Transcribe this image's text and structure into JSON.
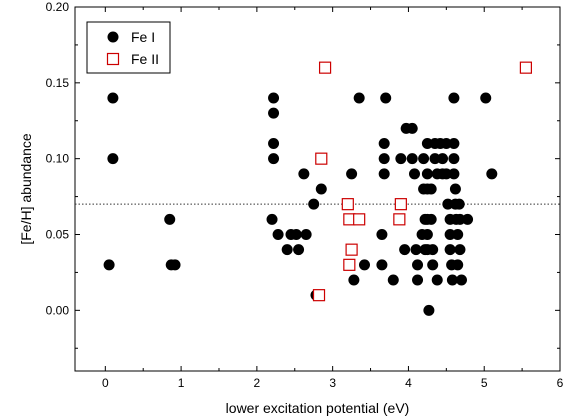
{
  "chart_data": {
    "type": "scatter",
    "xlabel": "lower excitation potential (eV)",
    "ylabel": "[Fe/H] abundance",
    "xlim": [
      -0.4,
      6.0
    ],
    "ylim": [
      -0.04,
      0.2
    ],
    "xticks": [
      0,
      1,
      2,
      3,
      4,
      5,
      6
    ],
    "xtick_labels": [
      "0",
      "1",
      "2",
      "3",
      "4",
      "5",
      "6"
    ],
    "yticks": [
      0.0,
      0.05,
      0.1,
      0.15,
      0.2
    ],
    "ytick_labels": [
      "0.00",
      "0.05",
      "0.10",
      "0.15",
      "0.20"
    ],
    "reference_line": {
      "y": 0.07,
      "style": "dotted"
    },
    "grid": false,
    "legend_position": "top-left",
    "series": [
      {
        "name": "Fe I",
        "marker": "filled-circle",
        "color": "#000000",
        "points": [
          [
            0.05,
            0.03
          ],
          [
            0.1,
            0.14
          ],
          [
            0.1,
            0.1
          ],
          [
            0.85,
            0.06
          ],
          [
            0.87,
            0.03
          ],
          [
            0.92,
            0.03
          ],
          [
            2.2,
            0.06
          ],
          [
            2.22,
            0.14
          ],
          [
            2.22,
            0.13
          ],
          [
            2.22,
            0.11
          ],
          [
            2.22,
            0.1
          ],
          [
            2.28,
            0.05
          ],
          [
            2.4,
            0.04
          ],
          [
            2.45,
            0.05
          ],
          [
            2.52,
            0.05
          ],
          [
            2.55,
            0.04
          ],
          [
            2.62,
            0.09
          ],
          [
            2.65,
            0.05
          ],
          [
            2.75,
            0.07
          ],
          [
            2.78,
            0.01
          ],
          [
            2.85,
            0.08
          ],
          [
            3.25,
            0.09
          ],
          [
            3.28,
            0.02
          ],
          [
            3.35,
            0.14
          ],
          [
            3.42,
            0.03
          ],
          [
            3.65,
            0.03
          ],
          [
            3.65,
            0.05
          ],
          [
            3.68,
            0.09
          ],
          [
            3.68,
            0.1
          ],
          [
            3.68,
            0.11
          ],
          [
            3.7,
            0.14
          ],
          [
            3.8,
            0.02
          ],
          [
            3.9,
            0.1
          ],
          [
            3.95,
            0.04
          ],
          [
            3.97,
            0.12
          ],
          [
            4.05,
            0.12
          ],
          [
            4.05,
            0.1
          ],
          [
            4.08,
            0.09
          ],
          [
            4.1,
            0.04
          ],
          [
            4.12,
            0.03
          ],
          [
            4.12,
            0.02
          ],
          [
            4.18,
            0.05
          ],
          [
            4.2,
            0.1
          ],
          [
            4.2,
            0.08
          ],
          [
            4.22,
            0.06
          ],
          [
            4.22,
            0.04
          ],
          [
            4.25,
            0.11
          ],
          [
            4.25,
            0.09
          ],
          [
            4.25,
            0.08
          ],
          [
            4.25,
            0.06
          ],
          [
            4.25,
            0.05
          ],
          [
            4.25,
            0.04
          ],
          [
            4.27,
            0.0
          ],
          [
            4.3,
            0.08
          ],
          [
            4.3,
            0.06
          ],
          [
            4.32,
            0.03
          ],
          [
            4.32,
            0.04
          ],
          [
            4.35,
            0.11
          ],
          [
            4.35,
            0.1
          ],
          [
            4.38,
            0.09
          ],
          [
            4.38,
            0.02
          ],
          [
            4.42,
            0.11
          ],
          [
            4.45,
            0.1
          ],
          [
            4.45,
            0.09
          ],
          [
            4.5,
            0.11
          ],
          [
            4.5,
            0.09
          ],
          [
            4.52,
            0.07
          ],
          [
            4.55,
            0.06
          ],
          [
            4.55,
            0.05
          ],
          [
            4.55,
            0.04
          ],
          [
            4.57,
            0.03
          ],
          [
            4.58,
            0.02
          ],
          [
            4.6,
            0.14
          ],
          [
            4.6,
            0.11
          ],
          [
            4.6,
            0.1
          ],
          [
            4.6,
            0.09
          ],
          [
            4.62,
            0.08
          ],
          [
            4.62,
            0.07
          ],
          [
            4.63,
            0.06
          ],
          [
            4.65,
            0.05
          ],
          [
            4.65,
            0.03
          ],
          [
            4.67,
            0.07
          ],
          [
            4.68,
            0.06
          ],
          [
            4.68,
            0.04
          ],
          [
            4.7,
            0.02
          ],
          [
            4.78,
            0.06
          ],
          [
            5.02,
            0.14
          ],
          [
            5.1,
            0.09
          ]
        ]
      },
      {
        "name": "Fe II",
        "marker": "open-square",
        "color": "#cc0000",
        "points": [
          [
            2.82,
            0.01
          ],
          [
            2.85,
            0.1
          ],
          [
            2.9,
            0.16
          ],
          [
            3.2,
            0.07
          ],
          [
            3.22,
            0.06
          ],
          [
            3.22,
            0.03
          ],
          [
            3.25,
            0.04
          ],
          [
            3.35,
            0.06
          ],
          [
            3.88,
            0.06
          ],
          [
            3.9,
            0.07
          ],
          [
            5.55,
            0.16
          ]
        ]
      }
    ]
  },
  "legend": {
    "items": [
      {
        "label": "Fe I"
      },
      {
        "label": "Fe II"
      }
    ]
  }
}
